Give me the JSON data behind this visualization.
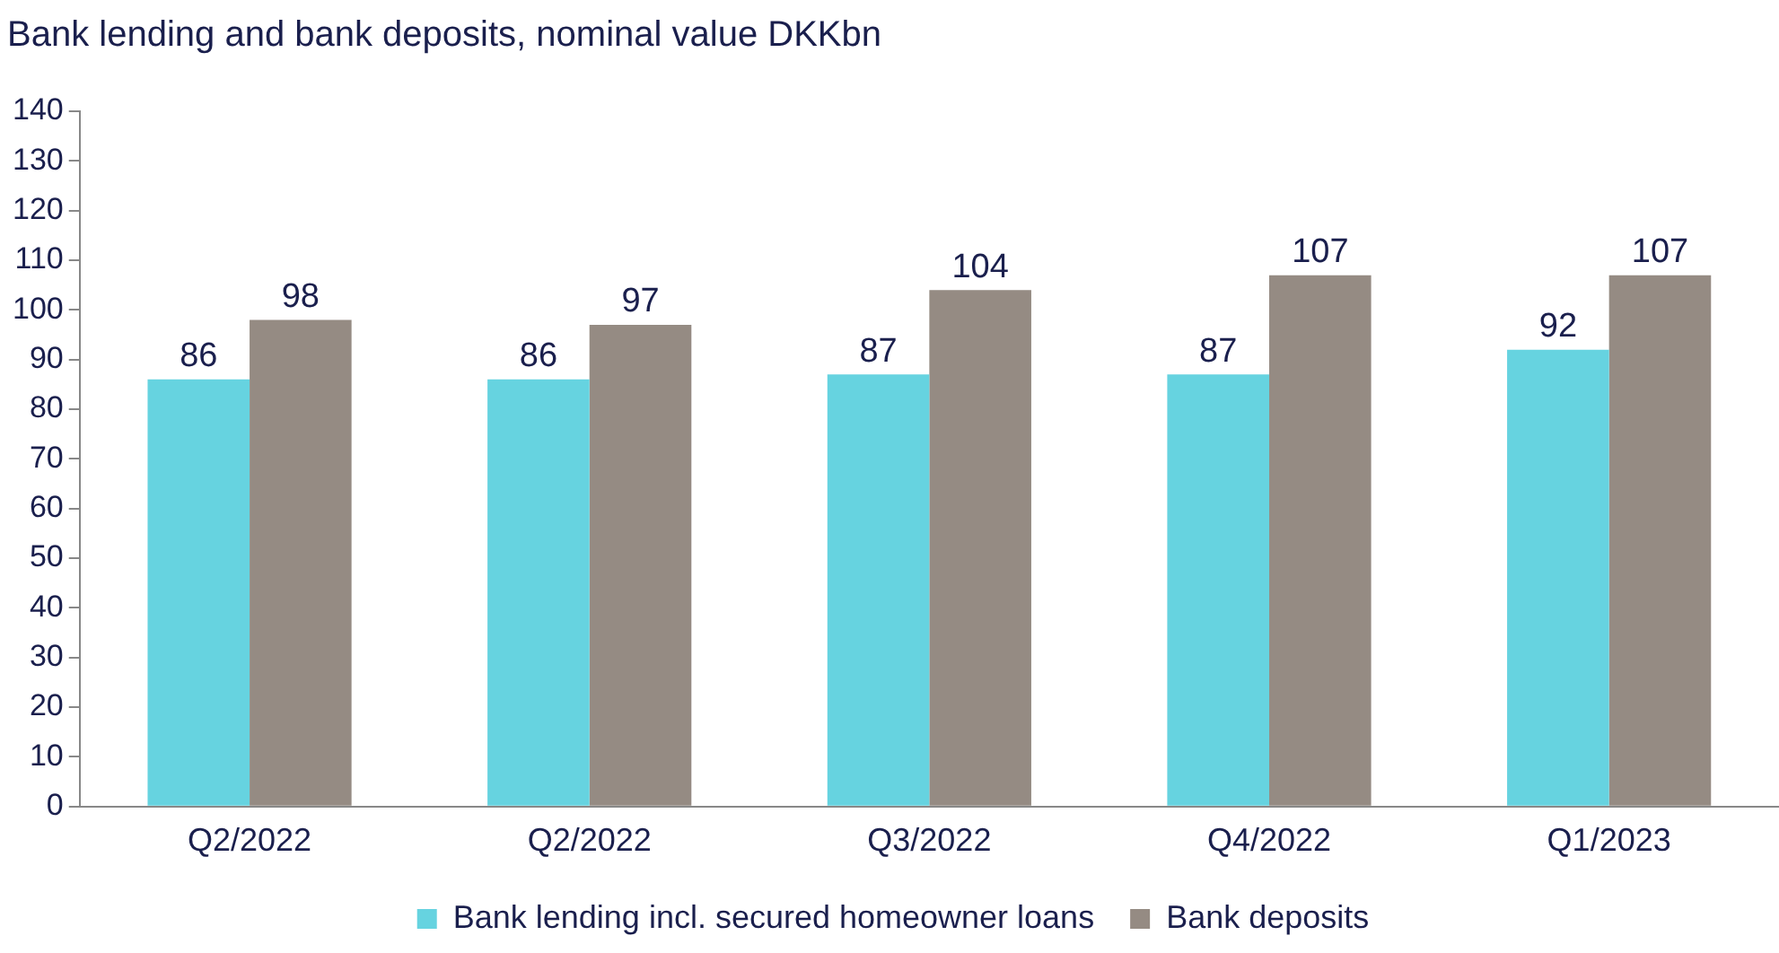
{
  "chart_data": {
    "type": "bar",
    "title": "Bank lending and bank deposits, nominal value DKKbn",
    "categories": [
      "Q2/2022",
      "Q2/2022",
      "Q3/2022",
      "Q4/2022",
      "Q1/2023"
    ],
    "series": [
      {
        "name": "Bank lending incl. secured homeowner loans",
        "color": "#66d3e0",
        "values": [
          86,
          86,
          87,
          87,
          92
        ]
      },
      {
        "name": "Bank deposits",
        "color": "#958b83",
        "values": [
          98,
          97,
          104,
          107,
          107
        ]
      }
    ],
    "ylim": [
      0,
      140
    ],
    "yticks": [
      0,
      10,
      20,
      30,
      40,
      50,
      60,
      70,
      80,
      90,
      100,
      110,
      120,
      130,
      140
    ],
    "grid": false,
    "legend": "bottom",
    "data_labels": true
  }
}
